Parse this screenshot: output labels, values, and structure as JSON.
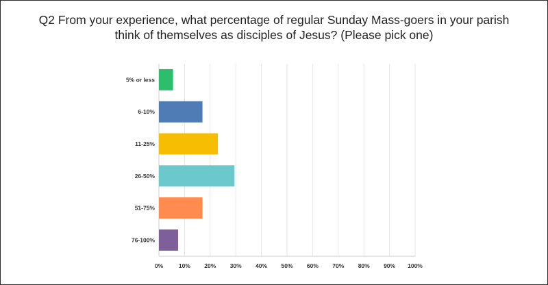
{
  "title_lines": [
    "Q2 From your experience, what percentage of regular Sunday Mass-goers in your parish",
    "think of themselves as disciples of Jesus? (Please pick one)"
  ],
  "chart_data": {
    "type": "bar",
    "orientation": "horizontal",
    "title": "Q2 From your experience, what percentage of regular Sunday Mass-goers in your parish think of themselves as disciples of Jesus? (Please pick one)",
    "categories": [
      "5% or less",
      "6-10%",
      "11-25%",
      "26-50%",
      "51-75%",
      "76-100%"
    ],
    "values": [
      5.5,
      17,
      23,
      29.5,
      17,
      7.5
    ],
    "colors": [
      "#2dbe6c",
      "#507cb6",
      "#f7bd00",
      "#6bc8cd",
      "#ff8b4f",
      "#7e5f9a"
    ],
    "xlim": [
      0,
      100
    ],
    "xticks": [
      "0%",
      "10%",
      "20%",
      "30%",
      "40%",
      "50%",
      "60%",
      "70%",
      "80%",
      "90%",
      "100%"
    ],
    "grid": true,
    "xlabel": "",
    "ylabel": ""
  }
}
